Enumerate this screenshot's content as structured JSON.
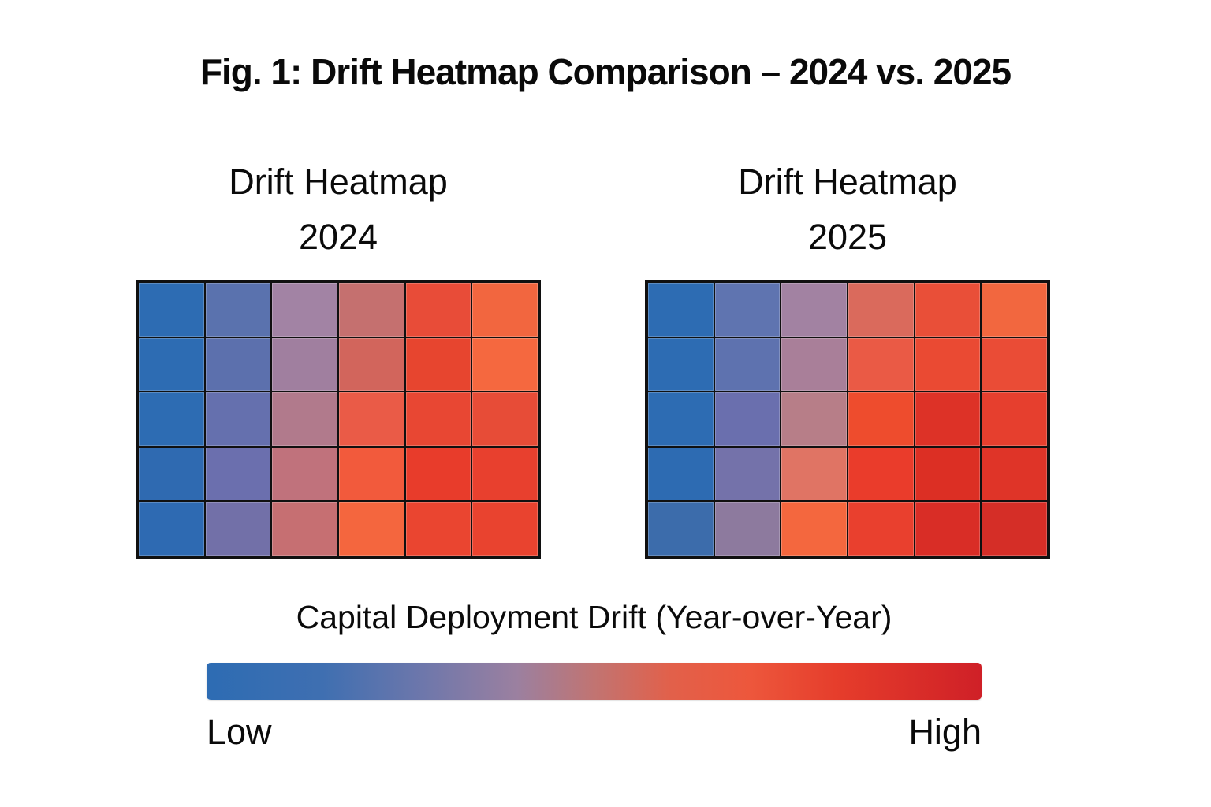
{
  "figure": {
    "title": "Fig. 1: Drift Heatmap Comparison – 2024 vs. 2025"
  },
  "legend": {
    "title": "Capital Deployment Drift (Year-over-Year)",
    "low_label": "Low",
    "high_label": "High"
  },
  "colors": {
    "background": "#ffffff",
    "text": "#0a0a0a",
    "grid_line": "#101010",
    "scale_low": "#2d6cb3",
    "scale_high": "#d02028"
  },
  "chart_data": {
    "type": "heatmap",
    "layout": "two panels side by side, shared diverging blue-to-red colorbar below",
    "rows": 5,
    "cols": 6,
    "value_scale": {
      "min_label": "Low",
      "max_label": "High",
      "range": [
        0,
        1
      ]
    },
    "colorbar_gradient_stops": [
      [
        0,
        "#2d6cb3"
      ],
      [
        15,
        "#3f6fb1"
      ],
      [
        28,
        "#6e77ab"
      ],
      [
        40,
        "#9b80a0"
      ],
      [
        50,
        "#c17472"
      ],
      [
        60,
        "#e2604a"
      ],
      [
        70,
        "#ed573c"
      ],
      [
        82,
        "#e53c2b"
      ],
      [
        100,
        "#cf2027"
      ]
    ],
    "heatmaps": [
      {
        "title_line1": "Drift Heatmap",
        "title_line2": "2024",
        "values": [
          [
            0.02,
            0.22,
            0.42,
            0.55,
            0.78,
            0.7
          ],
          [
            0.02,
            0.24,
            0.44,
            0.6,
            0.82,
            0.69
          ],
          [
            0.03,
            0.27,
            0.5,
            0.7,
            0.8,
            0.78
          ],
          [
            0.04,
            0.3,
            0.56,
            0.73,
            0.85,
            0.84
          ],
          [
            0.04,
            0.33,
            0.58,
            0.71,
            0.82,
            0.83
          ]
        ],
        "cell_colors": [
          [
            "#2d6cb3",
            "#5a72ae",
            "#a283a4",
            "#c5706f",
            "#e84c38",
            "#f2663f"
          ],
          [
            "#2d6cb3",
            "#5c70ad",
            "#a07f9f",
            "#d2655c",
            "#e7452f",
            "#f5683f"
          ],
          [
            "#2d6cb3",
            "#6570ae",
            "#b17a8c",
            "#ea5b47",
            "#e84733",
            "#e74c37"
          ],
          [
            "#2f6ab1",
            "#6b6fae",
            "#c0727c",
            "#f25a3c",
            "#e83c2b",
            "#e8402e"
          ],
          [
            "#2e6ab2",
            "#7270a8",
            "#c66f72",
            "#f4663e",
            "#ea4530",
            "#e9432f"
          ]
        ]
      },
      {
        "title_line1": "Drift Heatmap",
        "title_line2": "2025",
        "values": [
          [
            0.02,
            0.24,
            0.42,
            0.62,
            0.77,
            0.7
          ],
          [
            0.02,
            0.26,
            0.46,
            0.7,
            0.79,
            0.78
          ],
          [
            0.03,
            0.3,
            0.52,
            0.81,
            0.9,
            0.85
          ],
          [
            0.04,
            0.35,
            0.64,
            0.86,
            0.91,
            0.9
          ],
          [
            0.06,
            0.44,
            0.71,
            0.84,
            0.93,
            0.95
          ]
        ],
        "cell_colors": [
          [
            "#2d6cb3",
            "#5f74b0",
            "#a282a2",
            "#da6a5c",
            "#e94f38",
            "#f2673f"
          ],
          [
            "#2d6cb3",
            "#5e72af",
            "#a97f99",
            "#ea5a45",
            "#ea4a33",
            "#ea4c36"
          ],
          [
            "#2d6cb3",
            "#6a6fae",
            "#b77e88",
            "#ee4c2d",
            "#dd3227",
            "#e63f2e"
          ],
          [
            "#2d6bb2",
            "#7472aa",
            "#e07464",
            "#ea3c2b",
            "#dc2f24",
            "#df3428"
          ],
          [
            "#3c6cab",
            "#8d7a9e",
            "#f4673e",
            "#e9402e",
            "#d92d26",
            "#d52e27"
          ]
        ]
      }
    ]
  }
}
